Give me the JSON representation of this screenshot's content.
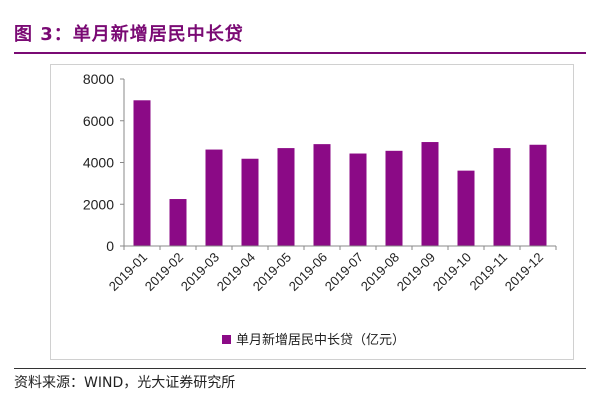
{
  "figure": {
    "title": "图 3：单月新增居民中长贷",
    "source": "资料来源：WIND，光大证券研究所"
  },
  "chart_data": {
    "type": "bar",
    "categories": [
      "2019-01",
      "2019-02",
      "2019-03",
      "2019-04",
      "2019-05",
      "2019-06",
      "2019-07",
      "2019-08",
      "2019-09",
      "2019-10",
      "2019-11",
      "2019-12"
    ],
    "series": [
      {
        "name": "单月新增居民中长贷（亿元）",
        "values": [
          6980,
          2250,
          4620,
          4180,
          4690,
          4880,
          4430,
          4560,
          4980,
          3610,
          4690,
          4850
        ],
        "color": "#8b0a86"
      }
    ],
    "yticks": [
      0,
      2000,
      4000,
      6000,
      8000
    ],
    "ylim": [
      0,
      8000
    ],
    "xlabel": "",
    "ylabel": "",
    "grid": false,
    "legend": "bottom"
  }
}
